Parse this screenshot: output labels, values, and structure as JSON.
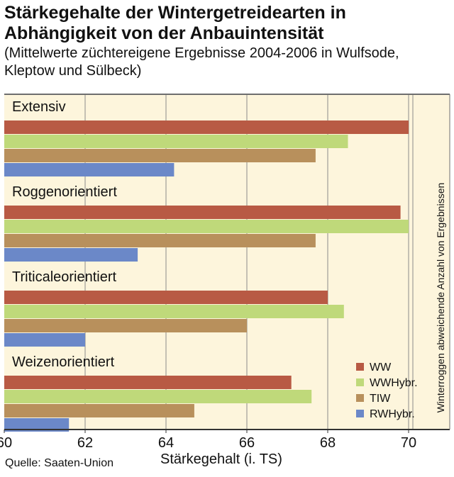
{
  "title_line1": "Stärkegehalte der Wintergetreidearten in",
  "title_line2": "Abhängigkeit von der Anbauintensität",
  "subtitle_line1": "(Mittelwerte züchtereigene Ergebnisse 2004-2006 in Wulfsode,",
  "subtitle_line2": "Kleptow und Sülbeck)",
  "source": "Quelle: Saaten-Union",
  "colors": {
    "panel_bg": "#fdf5dc",
    "grid": "#8a8a8a",
    "frame": "#6e6e6e"
  },
  "chart_data": {
    "type": "bar",
    "orientation": "horizontal",
    "xlabel": "Stärkegehalt (i. TS)",
    "xlim": [
      60,
      71
    ],
    "xticks": [
      60,
      62,
      64,
      66,
      68,
      70
    ],
    "grid": true,
    "legend_position": "bottom-right",
    "side_note": "Winterroggen abweichende Anzahl von Ergebnissen",
    "categories": [
      "Extensiv",
      "Roggenorientiert",
      "Triticaleorientiert",
      "Weizenorientiert"
    ],
    "series": [
      {
        "name": "WW",
        "color": "#b85a44",
        "values": [
          70.0,
          69.8,
          68.0,
          67.1
        ]
      },
      {
        "name": "WWHybr.",
        "color": "#bfd97a",
        "values": [
          68.5,
          70.0,
          68.4,
          67.6
        ]
      },
      {
        "name": "TIW",
        "color": "#b8905c",
        "values": [
          67.7,
          67.7,
          66.0,
          64.7
        ]
      },
      {
        "name": "RWHybr.",
        "color": "#6b88c8",
        "values": [
          64.2,
          63.3,
          62.0,
          61.6
        ]
      }
    ]
  }
}
